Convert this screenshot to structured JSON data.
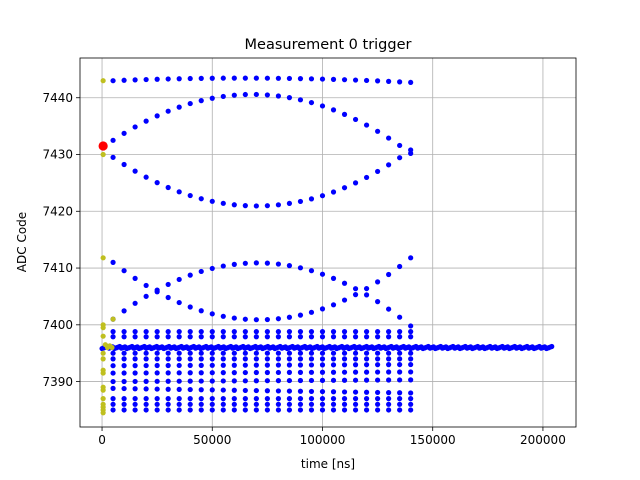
{
  "chart_data": {
    "type": "scatter",
    "title": "Measurement 0 trigger",
    "xlabel": "time [ns]",
    "ylabel": "ADC Code",
    "xlim": [
      -10000,
      215000
    ],
    "ylim": [
      7382,
      7447
    ],
    "xticks": [
      0,
      50000,
      100000,
      150000,
      200000
    ],
    "xtick_labels": [
      "0",
      "50000",
      "100000",
      "150000",
      "200000"
    ],
    "yticks": [
      7390,
      7400,
      7410,
      7420,
      7430,
      7440
    ],
    "ytick_labels": [
      "7390",
      "7400",
      "7410",
      "7420",
      "7430",
      "7440"
    ],
    "grid": true,
    "series": [
      {
        "color": "#0000ff",
        "marker": "dot",
        "note": "blue",
        "x_range": [
          5000,
          140000
        ],
        "x_step": 5000,
        "lines": [
          {
            "start": 7443.0,
            "end": 7442.7,
            "shape": "arc_up"
          },
          {
            "start": 7432.5,
            "end": 7430.2,
            "shape": "peak"
          },
          {
            "start": 7429.5,
            "end": 7430.8,
            "shape": "valley"
          },
          {
            "start": 7411.0,
            "end": 7411.8,
            "shape": "valley"
          },
          {
            "start": 7401.0,
            "end": 7399.8,
            "shape": "peak"
          },
          {
            "start": 7398.8,
            "end": 7398.8,
            "shape": "flat"
          },
          {
            "start": 7397.9,
            "end": 7397.9,
            "shape": "flat"
          },
          {
            "start": 7395.0,
            "end": 7395.0,
            "shape": "flat"
          },
          {
            "start": 7394.0,
            "end": 7394.0,
            "shape": "flat"
          },
          {
            "start": 7392.8,
            "end": 7393.0,
            "shape": "flat"
          },
          {
            "start": 7391.5,
            "end": 7391.7,
            "shape": "flat"
          },
          {
            "start": 7390.0,
            "end": 7390.3,
            "shape": "flat"
          },
          {
            "start": 7388.8,
            "end": 7388.0,
            "shape": "flat"
          },
          {
            "start": 7387.0,
            "end": 7387.0,
            "shape": "flat"
          },
          {
            "start": 7386.0,
            "end": 7386.0,
            "shape": "flat"
          },
          {
            "start": 7385.0,
            "end": 7385.0,
            "shape": "flat"
          }
        ],
        "baseline": {
          "y": 7396.0,
          "x_range": [
            0,
            204000
          ],
          "x_step": 800
        }
      },
      {
        "color": "#bfbf1f",
        "marker": "dot",
        "note": "olive",
        "points": [
          [
            500,
            7443.0
          ],
          [
            500,
            7430.0
          ],
          [
            500,
            7411.8
          ],
          [
            500,
            7400.0
          ],
          [
            500,
            7399.5
          ],
          [
            500,
            7398.0
          ],
          [
            500,
            7395.0
          ],
          [
            500,
            7394.0
          ],
          [
            500,
            7392.0
          ],
          [
            500,
            7391.5
          ],
          [
            500,
            7389.0
          ],
          [
            500,
            7388.5
          ],
          [
            500,
            7387.0
          ],
          [
            500,
            7386.0
          ],
          [
            500,
            7385.5
          ],
          [
            500,
            7385.0
          ],
          [
            500,
            7384.5
          ],
          [
            1500,
            7396.5
          ],
          [
            2500,
            7396.0
          ],
          [
            3500,
            7396.3
          ],
          [
            4500,
            7396.0
          ],
          [
            5000,
            7401.0
          ]
        ]
      },
      {
        "color": "#ff0000",
        "marker": "large-dot",
        "note": "red",
        "points": [
          [
            500,
            7431.5
          ]
        ]
      }
    ]
  }
}
